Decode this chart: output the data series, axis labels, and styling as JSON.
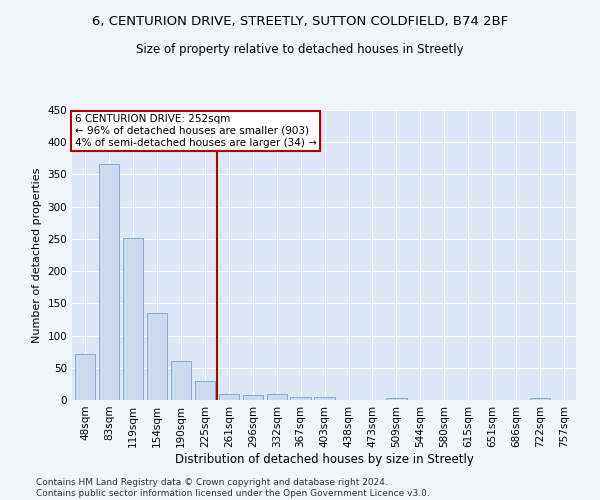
{
  "title1": "6, CENTURION DRIVE, STREETLY, SUTTON COLDFIELD, B74 2BF",
  "title2": "Size of property relative to detached houses in Streetly",
  "xlabel": "Distribution of detached houses by size in Streetly",
  "ylabel": "Number of detached properties",
  "bins": [
    "48sqm",
    "83sqm",
    "119sqm",
    "154sqm",
    "190sqm",
    "225sqm",
    "261sqm",
    "296sqm",
    "332sqm",
    "367sqm",
    "403sqm",
    "438sqm",
    "473sqm",
    "509sqm",
    "544sqm",
    "580sqm",
    "615sqm",
    "651sqm",
    "686sqm",
    "722sqm",
    "757sqm"
  ],
  "values": [
    71,
    366,
    252,
    135,
    60,
    30,
    10,
    7,
    10,
    4,
    5,
    0,
    0,
    3,
    0,
    0,
    0,
    0,
    0,
    3,
    0
  ],
  "bar_color": "#cdd9ed",
  "bar_edge_color": "#7bafd4",
  "vline_bin_index": 6,
  "vline_color": "#aa0000",
  "annotation_text": "6 CENTURION DRIVE: 252sqm\n← 96% of detached houses are smaller (903)\n4% of semi-detached houses are larger (34) →",
  "annotation_box_color": "#ffffff",
  "annotation_box_edge_color": "#aa0000",
  "ylim": [
    0,
    450
  ],
  "yticks": [
    0,
    50,
    100,
    150,
    200,
    250,
    300,
    350,
    400,
    450
  ],
  "bg_color": "#f0f4fb",
  "plot_bg_color": "#dce6f5",
  "grid_color": "#ffffff",
  "footnote": "Contains HM Land Registry data © Crown copyright and database right 2024.\nContains public sector information licensed under the Open Government Licence v3.0.",
  "title1_fontsize": 9.5,
  "title2_fontsize": 8.5,
  "xlabel_fontsize": 8.5,
  "ylabel_fontsize": 8,
  "tick_fontsize": 7.5,
  "annot_fontsize": 7.5,
  "footnote_fontsize": 6.5
}
